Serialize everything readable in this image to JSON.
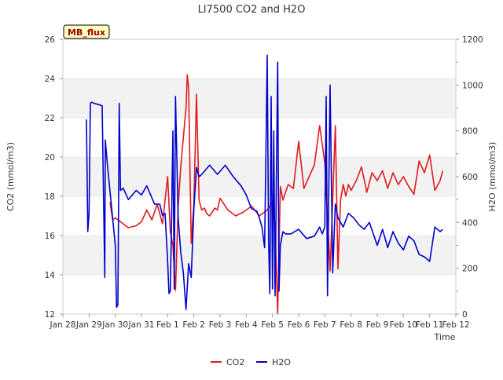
{
  "chart_data": {
    "type": "line",
    "title": "LI7500 CO2 and H2O",
    "annotation": "MB_flux",
    "xlabel": "Time",
    "ylabel_left": "CO2 (mmol/m3)",
    "ylabel_right": "H2O (mmol/m3)",
    "x_ticks": [
      "Jan 28",
      "Jan 29",
      "Jan 30",
      "Jan 31",
      "Feb 1",
      "Feb 2",
      "Feb 3",
      "Feb 4",
      "Feb 5",
      "Feb 6",
      "Feb 7",
      "Feb 8",
      "Feb 9",
      "Feb 10",
      "Feb 11",
      "Feb 12"
    ],
    "y_left_ticks": [
      "12",
      "14",
      "16",
      "18",
      "20",
      "22",
      "24",
      "26"
    ],
    "y_right_ticks": [
      "0",
      "200",
      "400",
      "600",
      "800",
      "1000",
      "1200"
    ],
    "xlim": [
      0,
      15
    ],
    "ylim_left": [
      12,
      26
    ],
    "ylim_right": [
      0,
      1200
    ],
    "grid": "horizontal bands",
    "legend_position": "bottom-center",
    "series": [
      {
        "name": "CO2",
        "axis": "left",
        "color": "#e31a1c",
        "x": [
          1.8,
          1.9,
          2.0,
          2.2,
          2.5,
          2.8,
          3.0,
          3.2,
          3.4,
          3.6,
          3.8,
          4.0,
          4.1,
          4.2,
          4.3,
          4.4,
          4.5,
          4.6,
          4.7,
          4.75,
          4.8,
          4.9,
          5.0,
          5.1,
          5.2,
          5.3,
          5.4,
          5.5,
          5.6,
          5.7,
          5.8,
          5.9,
          6.0,
          6.3,
          6.6,
          6.9,
          7.2,
          7.5,
          7.8,
          8.0,
          8.1,
          8.2,
          8.3,
          8.4,
          8.5,
          8.6,
          8.8,
          9.0,
          9.2,
          9.4,
          9.6,
          9.8,
          10.0,
          10.2,
          10.4,
          10.5,
          10.6,
          10.7,
          10.8,
          10.9,
          11.0,
          11.2,
          11.4,
          11.6,
          11.8,
          12.0,
          12.2,
          12.4,
          12.6,
          12.8,
          13.0,
          13.2,
          13.4,
          13.6,
          13.8,
          14.0,
          14.2,
          14.4,
          14.5
        ],
        "values": [
          17.7,
          16.8,
          16.9,
          16.7,
          16.4,
          16.5,
          16.7,
          17.3,
          16.8,
          17.6,
          16.6,
          19.0,
          16.2,
          15.5,
          13.2,
          17.5,
          19.5,
          21.0,
          22.5,
          24.2,
          23.5,
          15.6,
          17.6,
          23.2,
          17.8,
          17.3,
          17.4,
          17.1,
          17.0,
          17.2,
          17.4,
          17.3,
          17.9,
          17.3,
          17.0,
          17.2,
          17.5,
          17.0,
          17.3,
          17.7,
          16.5,
          12.0,
          18.5,
          17.8,
          18.2,
          18.6,
          18.4,
          20.8,
          18.4,
          19.0,
          19.6,
          21.6,
          19.7,
          14.2,
          21.6,
          14.3,
          17.8,
          18.6,
          18.0,
          18.6,
          18.3,
          18.8,
          19.5,
          18.2,
          19.2,
          18.8,
          19.3,
          18.4,
          19.2,
          18.6,
          19.0,
          18.5,
          18.1,
          19.8,
          19.2,
          20.1,
          18.3,
          18.8,
          19.3
        ]
      },
      {
        "name": "H2O",
        "axis": "right",
        "color": "#0000cc",
        "x": [
          0.9,
          0.95,
          1.0,
          1.05,
          1.1,
          1.2,
          1.5,
          1.6,
          1.62,
          1.7,
          2.0,
          2.05,
          2.1,
          2.15,
          2.2,
          2.3,
          2.5,
          2.8,
          3.0,
          3.2,
          3.5,
          3.7,
          3.8,
          3.9,
          4.0,
          4.05,
          4.1,
          4.15,
          4.2,
          4.25,
          4.3,
          4.4,
          4.5,
          4.6,
          4.7,
          4.8,
          4.9,
          5.0,
          5.1,
          5.2,
          5.3,
          5.6,
          5.9,
          6.2,
          6.5,
          6.8,
          7.0,
          7.2,
          7.4,
          7.5,
          7.6,
          7.7,
          7.8,
          7.85,
          7.9,
          7.95,
          8.0,
          8.05,
          8.1,
          8.2,
          8.25,
          8.3,
          8.4,
          8.5,
          8.7,
          9.0,
          9.3,
          9.6,
          9.8,
          9.9,
          10.0,
          10.05,
          10.1,
          10.2,
          10.3,
          10.4,
          10.5,
          10.7,
          10.9,
          11.1,
          11.3,
          11.5,
          11.7,
          12.0,
          12.2,
          12.4,
          12.6,
          12.8,
          13.0,
          13.2,
          13.4,
          13.6,
          13.8,
          14.0,
          14.2,
          14.4,
          14.5
        ],
        "values": [
          850,
          360,
          440,
          920,
          925,
          920,
          910,
          160,
          760,
          650,
          300,
          30,
          40,
          920,
          540,
          550,
          500,
          540,
          520,
          560,
          480,
          480,
          430,
          440,
          230,
          90,
          100,
          400,
          800,
          110,
          950,
          420,
          270,
          180,
          20,
          220,
          160,
          460,
          640,
          600,
          610,
          650,
          610,
          650,
          600,
          560,
          520,
          460,
          450,
          420,
          380,
          290,
          1130,
          330,
          90,
          950,
          110,
          800,
          80,
          1100,
          100,
          300,
          360,
          350,
          350,
          370,
          330,
          340,
          380,
          350,
          380,
          950,
          80,
          1000,
          180,
          480,
          420,
          380,
          440,
          420,
          390,
          370,
          400,
          300,
          370,
          290,
          360,
          310,
          280,
          340,
          320,
          260,
          250,
          230,
          380,
          360,
          370
        ]
      }
    ]
  }
}
